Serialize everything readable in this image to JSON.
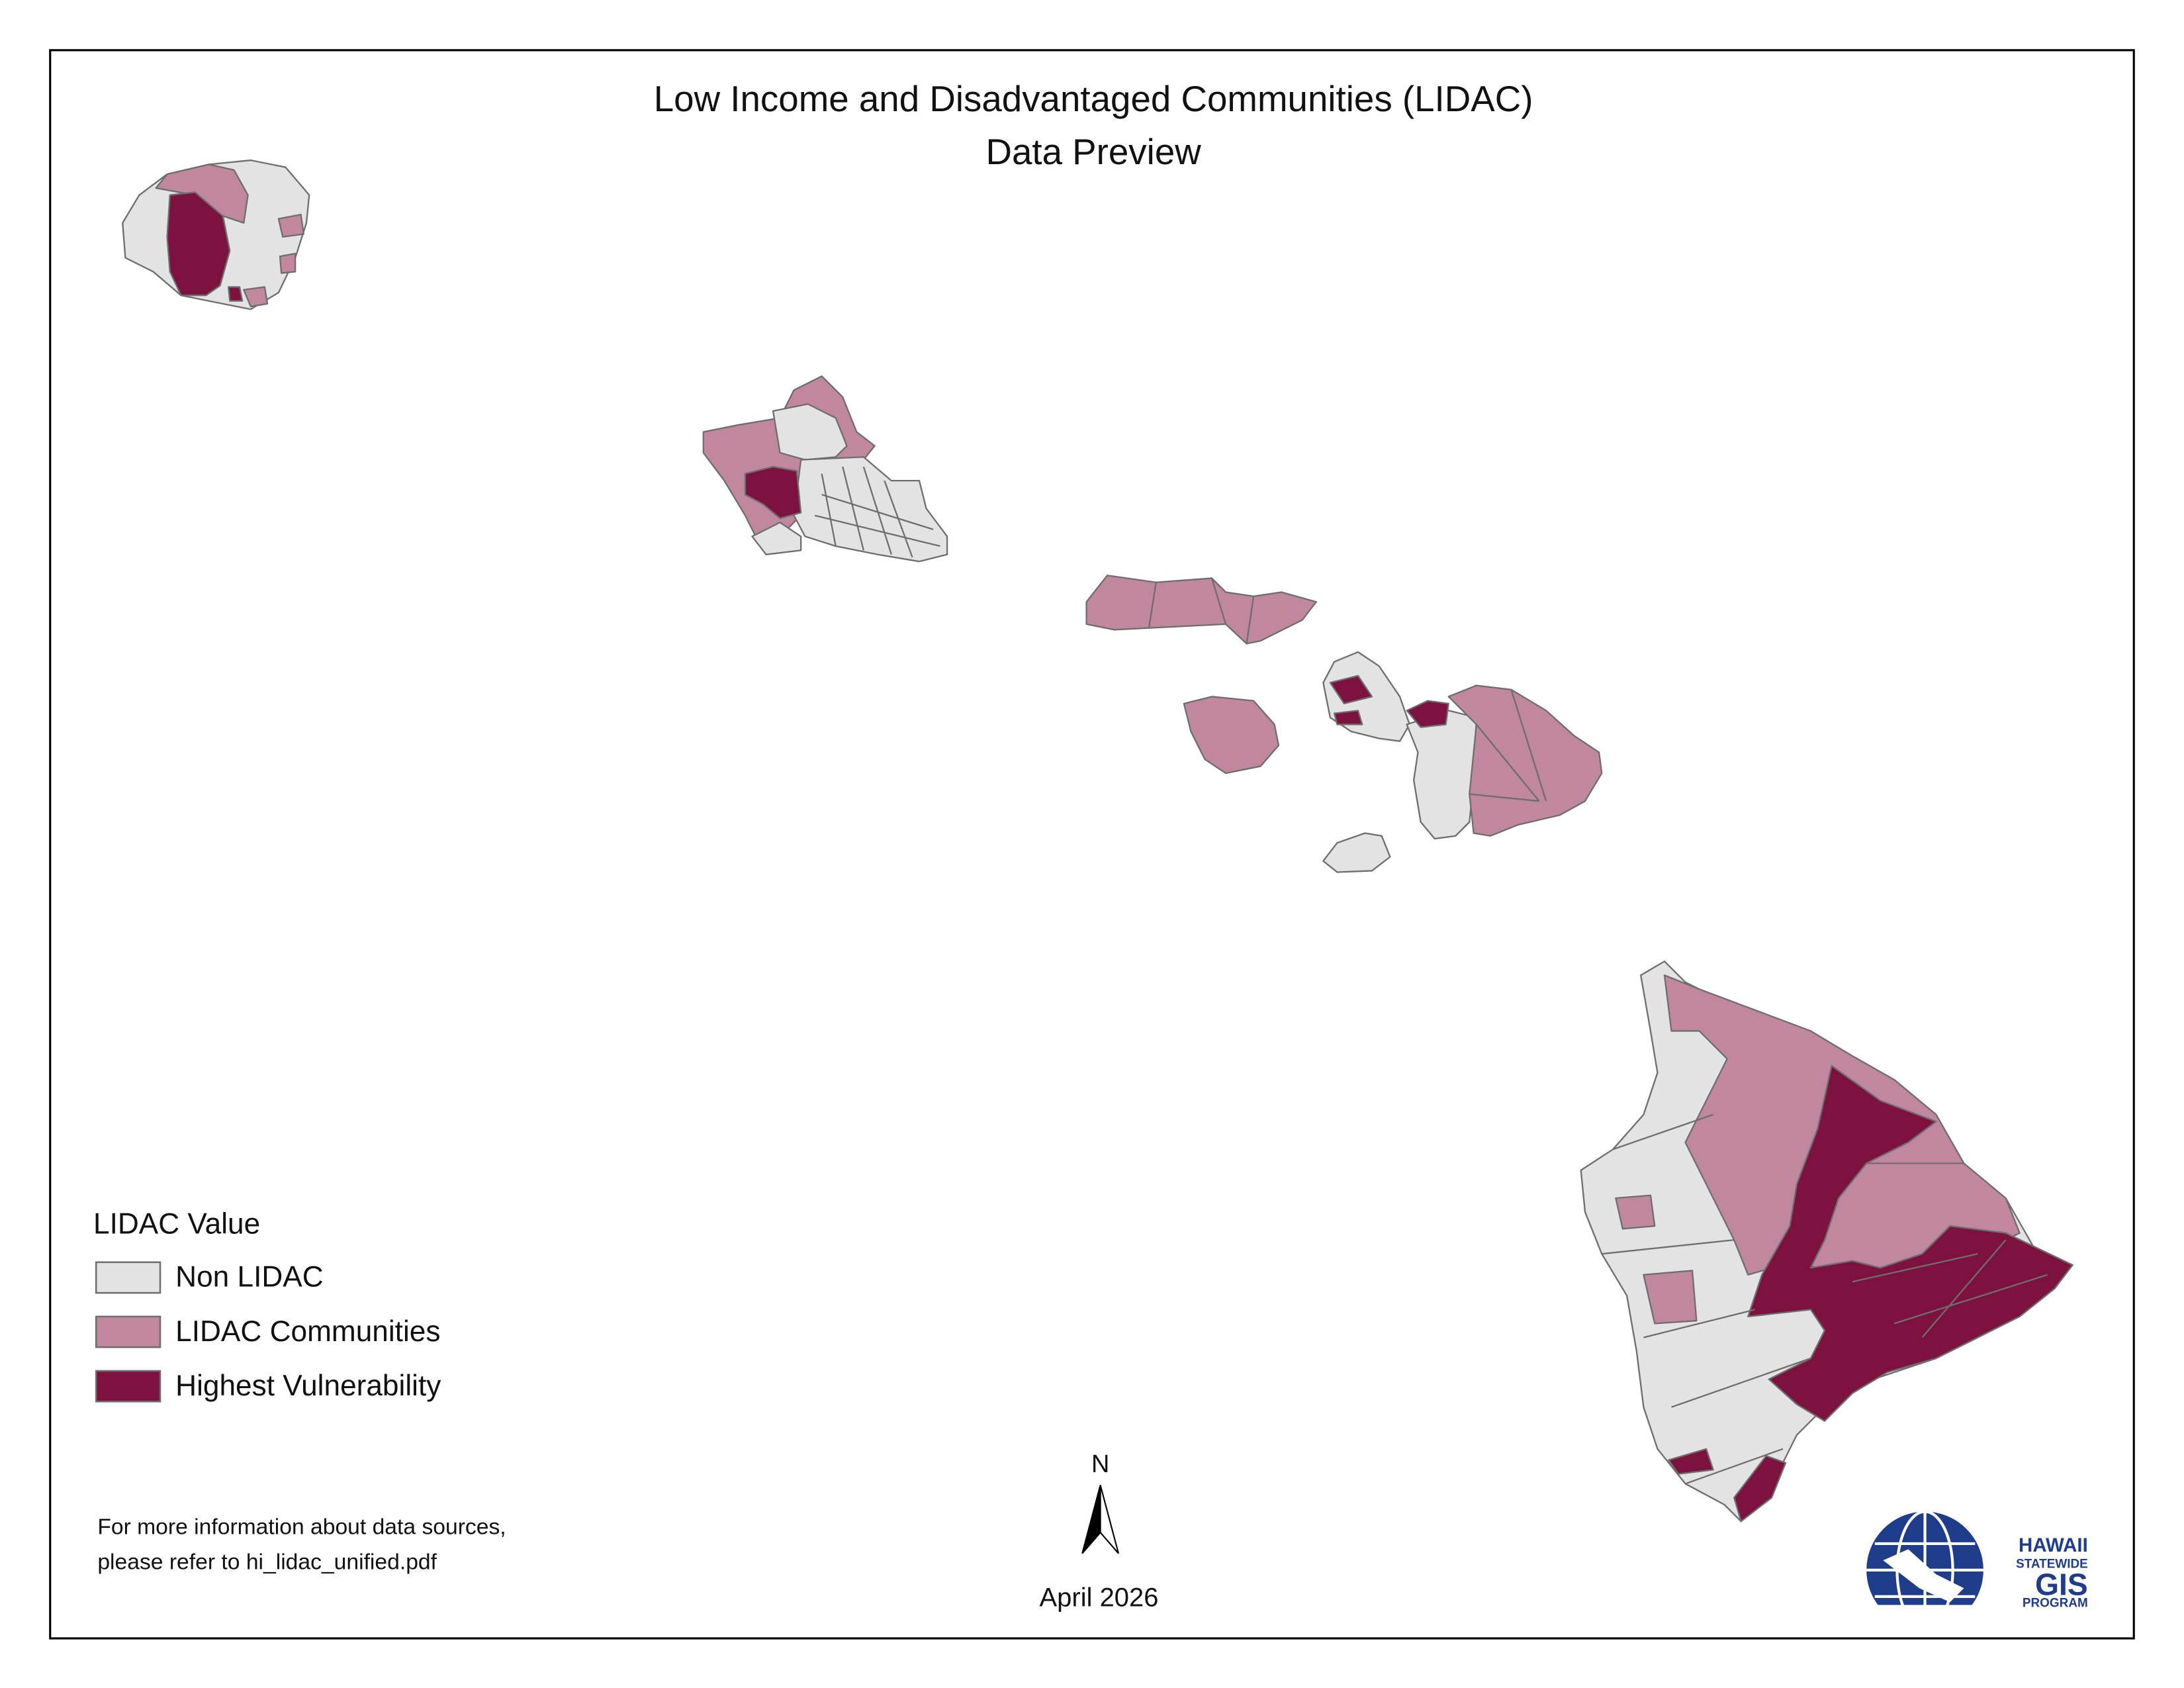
{
  "title": [
    "Low Income and Disadvantaged Communities (LIDAC)",
    "Data Preview"
  ],
  "legend": {
    "title": "LIDAC Value",
    "items": [
      {
        "label": "Non LIDAC",
        "color": "#e3e3e3"
      },
      {
        "label": "LIDAC Communities",
        "color": "#c0879f"
      },
      {
        "label": "Highest Vulnerability",
        "color": "#7d1140"
      }
    ]
  },
  "note": [
    "For more information about data sources,",
    "please refer to hi_lidac_unified.pdf"
  ],
  "date": "April 2026",
  "north": "N",
  "logo": [
    "HAWAII",
    "STATEWIDE",
    "GIS",
    "PROGRAM"
  ]
}
